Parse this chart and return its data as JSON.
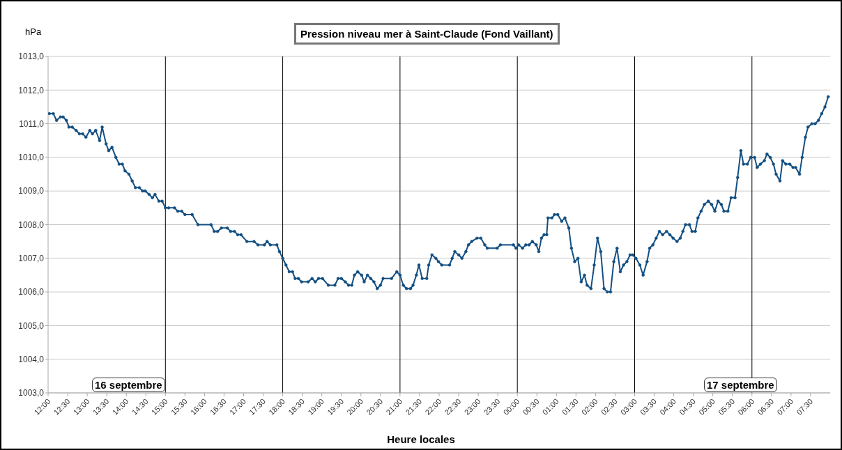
{
  "chart_data": {
    "type": "line",
    "title": "Pression niveau mer à Saint-Claude (Fond Vaillant)",
    "ylabel": "hPa",
    "xlabel": "Heure locales",
    "x": [
      "--09-16T12:02",
      "--09-16T12:08",
      "--09-16T12:13",
      "--09-16T12:19",
      "--09-16T12:23",
      "--09-16T12:28",
      "--09-16T12:32",
      "--09-16T12:37",
      "--09-16T12:43",
      "--09-16T12:48",
      "--09-16T12:53",
      "--09-16T12:58",
      "--09-16T13:04",
      "--09-16T13:08",
      "--09-16T13:13",
      "--09-16T13:19",
      "--09-16T13:23",
      "--09-16T13:29",
      "--09-16T13:33",
      "--09-16T13:38",
      "--09-16T13:44",
      "--09-16T13:49",
      "--09-16T13:54",
      "--09-16T13:58",
      "--09-16T14:04",
      "--09-16T14:09",
      "--09-16T14:14",
      "--09-16T14:20",
      "--09-16T14:25",
      "--09-16T14:29",
      "--09-16T14:35",
      "--09-16T14:40",
      "--09-16T14:44",
      "--09-16T14:50",
      "--09-16T14:55",
      "--09-16T15:00",
      "--09-16T15:05",
      "--09-16T15:14",
      "--09-16T15:19",
      "--09-16T15:25",
      "--09-16T15:30",
      "--09-16T15:41",
      "--09-16T15:50",
      "--09-16T16:10",
      "--09-16T16:15",
      "--09-16T16:20",
      "--09-16T16:26",
      "--09-16T16:35",
      "--09-16T16:40",
      "--09-16T16:46",
      "--09-16T16:51",
      "--09-16T16:56",
      "--09-16T17:05",
      "--09-16T17:16",
      "--09-16T17:22",
      "--09-16T17:32",
      "--09-16T17:36",
      "--09-16T17:41",
      "--09-16T17:51",
      "--09-16T17:55",
      "--09-16T18:00",
      "--09-16T18:05",
      "--09-16T18:10",
      "--09-16T18:15",
      "--09-16T18:19",
      "--09-16T18:24",
      "--09-16T18:29",
      "--09-16T18:39",
      "--09-16T18:45",
      "--09-16T18:50",
      "--09-16T18:55",
      "--09-16T19:01",
      "--09-16T19:10",
      "--09-16T19:20",
      "--09-16T19:25",
      "--09-16T19:30",
      "--09-16T19:36",
      "--09-16T19:41",
      "--09-16T19:46",
      "--09-16T19:50",
      "--09-16T19:55",
      "--09-16T20:01",
      "--09-16T20:05",
      "--09-16T20:10",
      "--09-16T20:15",
      "--09-16T20:20",
      "--09-16T20:25",
      "--09-16T20:30",
      "--09-16T20:34",
      "--09-16T20:47",
      "--09-16T20:55",
      "--09-16T21:00",
      "--09-16T21:05",
      "--09-16T21:10",
      "--09-16T21:16",
      "--09-16T21:20",
      "--09-16T21:25",
      "--09-16T21:29",
      "--09-16T21:34",
      "--09-16T21:41",
      "--09-16T21:44",
      "--09-16T21:49",
      "--09-16T21:55",
      "--09-16T21:59",
      "--09-16T22:04",
      "--09-16T22:16",
      "--09-16T22:20",
      "--09-16T22:24",
      "--09-16T22:30",
      "--09-16T22:35",
      "--09-16T22:41",
      "--09-16T22:45",
      "--09-16T22:50",
      "--09-16T22:58",
      "--09-16T23:04",
      "--09-16T23:10",
      "--09-16T23:14",
      "--09-16T23:29",
      "--09-16T23:34",
      "--09-16T23:54",
      "--09-16T23:58",
      "--09-17T00:02",
      "--09-17T00:08",
      "--09-17T00:13",
      "--09-17T00:18",
      "--09-17T00:23",
      "--09-17T00:29",
      "--09-17T00:33",
      "--09-17T00:37",
      "--09-17T00:41",
      "--09-17T00:45",
      "--09-17T00:47",
      "--09-17T00:53",
      "--09-17T00:57",
      "--09-17T01:02",
      "--09-17T01:08",
      "--09-17T01:13",
      "--09-17T01:19",
      "--09-17T01:23",
      "--09-17T01:28",
      "--09-17T01:33",
      "--09-17T01:38",
      "--09-17T01:43",
      "--09-17T01:47",
      "--09-17T01:53",
      "--09-17T01:58",
      "--09-17T02:03",
      "--09-17T02:08",
      "--09-17T02:13",
      "--09-17T02:18",
      "--09-17T02:23",
      "--09-17T02:28",
      "--09-17T02:33",
      "--09-17T02:38",
      "--09-17T02:43",
      "--09-17T02:48",
      "--09-17T02:53",
      "--09-17T02:57",
      "--09-17T03:02",
      "--09-17T03:08",
      "--09-17T03:13",
      "--09-17T03:19",
      "--09-17T03:23",
      "--09-17T03:28",
      "--09-17T03:33",
      "--09-17T03:38",
      "--09-17T03:43",
      "--09-17T03:49",
      "--09-17T03:54",
      "--09-17T03:59",
      "--09-17T04:05",
      "--09-17T04:10",
      "--09-17T04:14",
      "--09-17T04:18",
      "--09-17T04:24",
      "--09-17T04:28",
      "--09-17T04:33",
      "--09-17T04:37",
      "--09-17T04:42",
      "--09-17T04:47",
      "--09-17T04:53",
      "--09-17T04:58",
      "--09-17T05:03",
      "--09-17T05:08",
      "--09-17T05:13",
      "--09-17T05:17",
      "--09-17T05:23",
      "--09-17T05:28",
      "--09-17T05:34",
      "--09-17T05:38",
      "--09-17T05:43",
      "--09-17T05:47",
      "--09-17T05:53",
      "--09-17T05:58",
      "--09-17T06:04",
      "--09-17T06:08",
      "--09-17T06:13",
      "--09-17T06:19",
      "--09-17T06:23",
      "--09-17T06:28",
      "--09-17T06:33",
      "--09-17T06:37",
      "--09-17T06:43",
      "--09-17T06:47",
      "--09-17T06:52",
      "--09-17T06:58",
      "--09-17T07:03",
      "--09-17T07:07",
      "--09-17T07:13",
      "--09-17T07:17",
      "--09-17T07:22",
      "--09-17T07:26",
      "--09-17T07:32",
      "--09-17T07:37",
      "--09-17T07:42",
      "--09-17T07:47",
      "--09-17T07:52",
      "--09-17T07:57"
    ],
    "series": [
      {
        "color": "#134f82",
        "values": [
          1011.3,
          1011.3,
          1011.1,
          1011.2,
          1011.2,
          1011.1,
          1010.9,
          1010.9,
          1010.8,
          1010.7,
          1010.7,
          1010.6,
          1010.8,
          1010.7,
          1010.8,
          1010.5,
          1010.9,
          1010.4,
          1010.2,
          1010.3,
          1010.0,
          1009.8,
          1009.8,
          1009.6,
          1009.5,
          1009.3,
          1009.1,
          1009.1,
          1009.0,
          1009.0,
          1008.9,
          1008.8,
          1008.9,
          1008.7,
          1008.7,
          1008.5,
          1008.5,
          1008.5,
          1008.4,
          1008.4,
          1008.3,
          1008.3,
          1008.0,
          1008.0,
          1007.8,
          1007.8,
          1007.9,
          1007.9,
          1007.8,
          1007.8,
          1007.7,
          1007.7,
          1007.5,
          1007.5,
          1007.4,
          1007.4,
          1007.5,
          1007.4,
          1007.4,
          1007.2,
          1007.0,
          1006.8,
          1006.6,
          1006.6,
          1006.4,
          1006.4,
          1006.3,
          1006.3,
          1006.4,
          1006.3,
          1006.4,
          1006.4,
          1006.2,
          1006.2,
          1006.4,
          1006.4,
          1006.3,
          1006.2,
          1006.2,
          1006.5,
          1006.6,
          1006.5,
          1006.3,
          1006.5,
          1006.4,
          1006.3,
          1006.1,
          1006.2,
          1006.4,
          1006.4,
          1006.6,
          1006.5,
          1006.2,
          1006.1,
          1006.1,
          1006.2,
          1006.5,
          1006.8,
          1006.4,
          1006.4,
          1006.8,
          1007.1,
          1007.0,
          1006.9,
          1006.8,
          1006.8,
          1007.0,
          1007.2,
          1007.1,
          1007.0,
          1007.2,
          1007.4,
          1007.5,
          1007.6,
          1007.6,
          1007.4,
          1007.3,
          1007.3,
          1007.4,
          1007.4,
          1007.3,
          1007.4,
          1007.3,
          1007.4,
          1007.4,
          1007.5,
          1007.4,
          1007.2,
          1007.6,
          1007.7,
          1007.7,
          1008.2,
          1008.2,
          1008.3,
          1008.3,
          1008.1,
          1008.2,
          1007.9,
          1007.3,
          1006.9,
          1007.0,
          1006.3,
          1006.5,
          1006.2,
          1006.1,
          1006.8,
          1007.6,
          1007.2,
          1006.1,
          1006.0,
          1006.0,
          1006.9,
          1007.3,
          1006.6,
          1006.8,
          1006.9,
          1007.1,
          1007.1,
          1007.0,
          1006.8,
          1006.5,
          1006.9,
          1007.3,
          1007.4,
          1007.6,
          1007.8,
          1007.7,
          1007.8,
          1007.7,
          1007.6,
          1007.5,
          1007.6,
          1007.8,
          1008.0,
          1008.0,
          1007.8,
          1007.8,
          1008.2,
          1008.4,
          1008.6,
          1008.7,
          1008.6,
          1008.4,
          1008.7,
          1008.6,
          1008.4,
          1008.4,
          1008.8,
          1008.8,
          1009.4,
          1010.2,
          1009.8,
          1009.8,
          1010.0,
          1010.0,
          1009.7,
          1009.8,
          1009.9,
          1010.1,
          1010.0,
          1009.8,
          1009.5,
          1009.3,
          1009.9,
          1009.8,
          1009.8,
          1009.7,
          1009.7,
          1009.5,
          1010.0,
          1010.6,
          1010.9,
          1011.0,
          1011.0,
          1011.1,
          1011.3,
          1011.5,
          1011.8
        ]
      }
    ],
    "xlim": [
      "--09-16T12:00",
      "--09-17T08:00"
    ],
    "xticks": [
      {
        "value": "--09-16T12:00",
        "label": "12:00"
      },
      {
        "value": "--09-16T12:30",
        "label": "12:30"
      },
      {
        "value": "--09-16T13:00",
        "label": "13:00"
      },
      {
        "value": "--09-16T13:30",
        "label": "13:30"
      },
      {
        "value": "--09-16T14:00",
        "label": "14:00"
      },
      {
        "value": "--09-16T14:30",
        "label": "14:30"
      },
      {
        "value": "--09-16T15:00",
        "label": "15:00"
      },
      {
        "value": "--09-16T15:30",
        "label": "15:30"
      },
      {
        "value": "--09-16T16:00",
        "label": "16:00"
      },
      {
        "value": "--09-16T16:30",
        "label": "16:30"
      },
      {
        "value": "--09-16T17:00",
        "label": "17:00"
      },
      {
        "value": "--09-16T17:30",
        "label": "17:30"
      },
      {
        "value": "--09-16T18:00",
        "label": "18:00"
      },
      {
        "value": "--09-16T18:30",
        "label": "18:30"
      },
      {
        "value": "--09-16T19:00",
        "label": "19:00"
      },
      {
        "value": "--09-16T19:30",
        "label": "19:30"
      },
      {
        "value": "--09-16T20:00",
        "label": "20:00"
      },
      {
        "value": "--09-16T20:30",
        "label": "20:30"
      },
      {
        "value": "--09-16T21:00",
        "label": "21:00"
      },
      {
        "value": "--09-16T21:30",
        "label": "21:30"
      },
      {
        "value": "--09-16T22:00",
        "label": "22:00"
      },
      {
        "value": "--09-16T22:30",
        "label": "22:30"
      },
      {
        "value": "--09-16T23:00",
        "label": "23:00"
      },
      {
        "value": "--09-16T23:30",
        "label": "23:30"
      },
      {
        "value": "--09-17T00:00",
        "label": "00:00"
      },
      {
        "value": "--09-17T00:30",
        "label": "00:30"
      },
      {
        "value": "--09-17T01:00",
        "label": "01:00"
      },
      {
        "value": "--09-17T01:30",
        "label": "01:30"
      },
      {
        "value": "--09-17T02:00",
        "label": "02:00"
      },
      {
        "value": "--09-17T02:30",
        "label": "02:30"
      },
      {
        "value": "--09-17T03:00",
        "label": "03:00"
      },
      {
        "value": "--09-17T03:30",
        "label": "03:30"
      },
      {
        "value": "--09-17T04:00",
        "label": "04:00"
      },
      {
        "value": "--09-17T04:30",
        "label": "04:30"
      },
      {
        "value": "--09-17T05:00",
        "label": "05:00"
      },
      {
        "value": "--09-17T05:30",
        "label": "05:30"
      },
      {
        "value": "--09-17T06:00",
        "label": "06:00"
      },
      {
        "value": "--09-17T06:30",
        "label": "06:30"
      },
      {
        "value": "--09-17T07:00",
        "label": "07:00"
      },
      {
        "value": "--09-17T07:30",
        "label": "07:30"
      }
    ],
    "ylim": [
      1003,
      1013
    ],
    "yticks": [
      {
        "value": 1003,
        "label": "1003,0"
      },
      {
        "value": 1004,
        "label": "1004,0"
      },
      {
        "value": 1005,
        "label": "1005,0"
      },
      {
        "value": 1006,
        "label": "1006,0"
      },
      {
        "value": 1007,
        "label": "1007,0"
      },
      {
        "value": 1008,
        "label": "1008,0"
      },
      {
        "value": 1009,
        "label": "1009,0"
      },
      {
        "value": 1010,
        "label": "1010,0"
      },
      {
        "value": 1011,
        "label": "1011,0"
      },
      {
        "value": 1012,
        "label": "1012,0"
      },
      {
        "value": 1013,
        "label": "1013,0"
      }
    ],
    "grid": "y",
    "marker": "circle",
    "line_style": "solid",
    "ref_lines": [
      {
        "axis": "x",
        "value": "--09-16T15:00",
        "color": "#000000"
      },
      {
        "axis": "x",
        "value": "--09-16T18:00",
        "color": "#000000"
      },
      {
        "axis": "x",
        "value": "--09-16T21:00",
        "color": "#000000"
      },
      {
        "axis": "x",
        "value": "--09-17T00:00",
        "color": "#000000"
      },
      {
        "axis": "x",
        "value": "--09-17T03:00",
        "color": "#000000"
      },
      {
        "axis": "x",
        "value": "--09-17T06:00",
        "color": "#000000"
      }
    ],
    "annotations": [
      "16 septembre",
      "17 septembre"
    ]
  }
}
